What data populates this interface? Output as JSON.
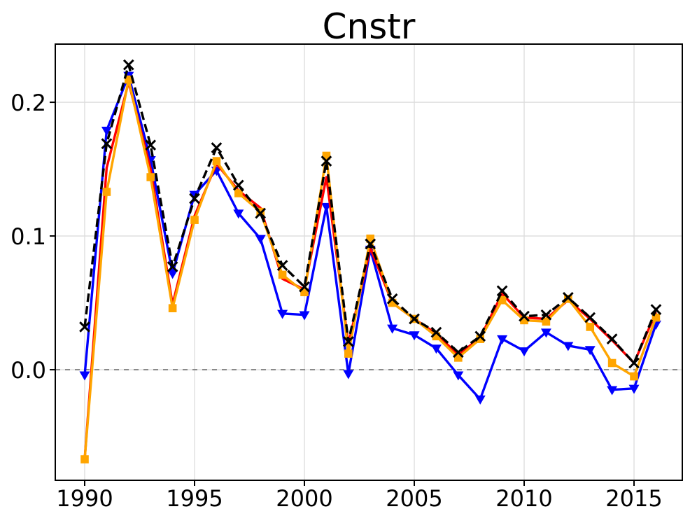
{
  "title": "Cnstr",
  "chart_data": {
    "type": "line",
    "title": "Cnstr",
    "xlabel": "",
    "ylabel": "",
    "x": [
      1990,
      1991,
      1992,
      1993,
      1994,
      1995,
      1996,
      1997,
      1998,
      1999,
      2000,
      2001,
      2002,
      2003,
      2004,
      2005,
      2006,
      2007,
      2008,
      2009,
      2010,
      2011,
      2012,
      2013,
      2014,
      2015,
      2016
    ],
    "series": [
      {
        "name": "blue-triangle",
        "color": "#0000ff",
        "line_style": "solid",
        "marker": "triangle-down",
        "values": [
          -0.004,
          0.179,
          0.22,
          0.157,
          0.072,
          0.131,
          0.149,
          0.117,
          0.098,
          0.042,
          0.041,
          0.122,
          -0.003,
          0.09,
          0.031,
          0.026,
          0.016,
          -0.004,
          -0.022,
          0.023,
          0.014,
          0.028,
          0.018,
          0.015,
          -0.015,
          -0.014,
          0.034
        ]
      },
      {
        "name": "red-solid",
        "color": "#ff0000",
        "line_style": "solid",
        "marker": "none",
        "values": [
          -0.067,
          0.151,
          0.215,
          0.15,
          0.049,
          0.115,
          0.154,
          0.134,
          0.121,
          0.068,
          0.06,
          0.144,
          0.019,
          0.091,
          0.05,
          0.038,
          0.027,
          0.011,
          0.024,
          0.057,
          0.039,
          0.038,
          0.052,
          0.038,
          0.022,
          0.005,
          0.043
        ]
      },
      {
        "name": "orange-square",
        "color": "#ffa500",
        "line_style": "solid",
        "marker": "square",
        "values": [
          -0.067,
          0.133,
          0.217,
          0.144,
          0.046,
          0.112,
          0.156,
          0.132,
          0.118,
          0.071,
          0.058,
          0.16,
          0.012,
          0.098,
          0.05,
          0.038,
          0.025,
          0.009,
          0.023,
          0.052,
          0.037,
          0.036,
          0.053,
          0.032,
          0.005,
          -0.005,
          0.039
        ]
      },
      {
        "name": "black-dashed-x",
        "color": "#000000",
        "line_style": "dashed",
        "marker": "x",
        "values": [
          0.032,
          0.169,
          0.228,
          0.168,
          0.077,
          0.128,
          0.166,
          0.138,
          0.117,
          0.078,
          0.062,
          0.156,
          0.021,
          0.094,
          0.053,
          0.038,
          0.028,
          0.013,
          0.025,
          0.059,
          0.04,
          0.041,
          0.054,
          0.039,
          0.023,
          0.005,
          0.045
        ]
      }
    ],
    "xticks": [
      1990,
      1995,
      2000,
      2005,
      2010,
      2015
    ],
    "xtick_labels": [
      "1990",
      "1995",
      "2000",
      "2005",
      "2010",
      "2015"
    ],
    "yticks": [
      0.0,
      0.1,
      0.2
    ],
    "ytick_labels": [
      "0.0",
      "0.1",
      "0.2"
    ],
    "xlim": [
      1988.662,
      2017.197
    ],
    "ylim": [
      -0.0827,
      0.2435
    ],
    "grid": "on",
    "zero_line": 0.0,
    "legend": "none",
    "grid_color": "#dcdcdc",
    "zero_line_color": "#7f7f7f",
    "background_color": "#ffffff"
  }
}
